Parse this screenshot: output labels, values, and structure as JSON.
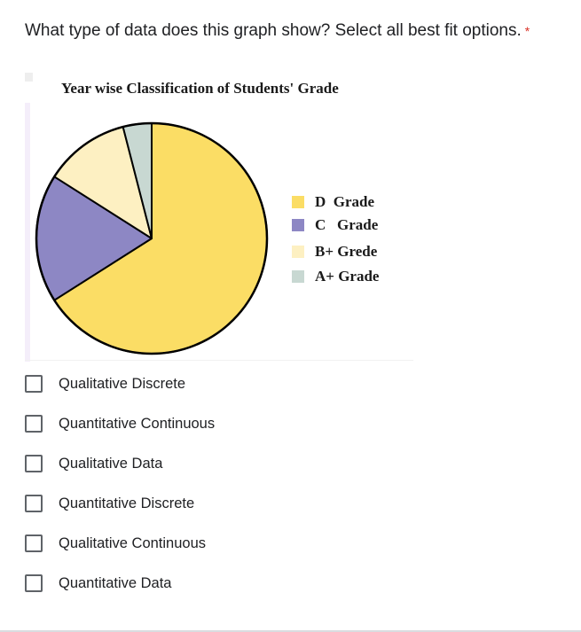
{
  "question": {
    "text": "What type of data does this graph show? Select all best fit options.",
    "required_marker": "*"
  },
  "colors": {
    "required": "#d93025",
    "text": "#202124",
    "checkbox_border": "#5f6368"
  },
  "chart_data": {
    "type": "pie",
    "title": "Year wise Classification of Students' Grade",
    "slices": [
      {
        "label": "D  Grade",
        "value": 66,
        "color": "#fbdd65"
      },
      {
        "label": "C   Grade",
        "value": 18,
        "color": "#8d87c4"
      },
      {
        "label": "B+ Grede",
        "value": 12,
        "color": "#fdf0c2"
      },
      {
        "label": "A+ Grade",
        "value": 4,
        "color": "#c8d8d2"
      }
    ],
    "legend_position": "right"
  },
  "options": [
    {
      "label": "Qualitative Discrete",
      "checked": false
    },
    {
      "label": "Quantitative Continuous",
      "checked": false
    },
    {
      "label": "Qualitative Data",
      "checked": false
    },
    {
      "label": "Quantitative Discrete",
      "checked": false
    },
    {
      "label": "Qualitative Continuous",
      "checked": false
    },
    {
      "label": "Quantitative Data",
      "checked": false
    }
  ]
}
